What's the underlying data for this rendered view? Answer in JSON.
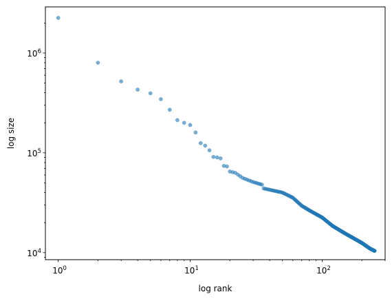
{
  "chart_data": {
    "type": "scatter",
    "title": "",
    "xlabel": "log rank",
    "ylabel": "log size",
    "x_scale": "log",
    "y_scale": "log",
    "xlim": [
      0.8,
      300
    ],
    "ylim": [
      8500,
      2900000
    ],
    "grid": false,
    "marker_color": "#1f77b4",
    "marker_alpha": 0.6,
    "x_ticks": [
      {
        "value": 1,
        "base": "10",
        "exp": "0"
      },
      {
        "value": 10,
        "base": "10",
        "exp": "1"
      },
      {
        "value": 100,
        "base": "10",
        "exp": "2"
      }
    ],
    "y_ticks": [
      {
        "value": 10000,
        "base": "10",
        "exp": "4"
      },
      {
        "value": 100000,
        "base": "10",
        "exp": "5"
      },
      {
        "value": 1000000,
        "base": "10",
        "exp": "6"
      }
    ],
    "anchor_points": [
      [
        1,
        2250000
      ],
      [
        2,
        800000
      ],
      [
        3,
        520000
      ],
      [
        4,
        430000
      ],
      [
        5,
        395000
      ],
      [
        6,
        345000
      ],
      [
        7,
        270000
      ],
      [
        8,
        213000
      ],
      [
        9,
        200000
      ],
      [
        10,
        190000
      ],
      [
        11,
        160000
      ],
      [
        12,
        125000
      ],
      [
        13,
        118000
      ],
      [
        14,
        106000
      ],
      [
        15,
        91000
      ],
      [
        16,
        90000
      ],
      [
        17,
        88000
      ],
      [
        18,
        74000
      ],
      [
        19,
        73000
      ],
      [
        20,
        65000
      ],
      [
        22,
        63000
      ],
      [
        25,
        56000
      ],
      [
        30,
        51000
      ],
      [
        35,
        48000
      ],
      [
        36,
        44000
      ],
      [
        50,
        40000
      ],
      [
        60,
        35500
      ],
      [
        70,
        29500
      ],
      [
        80,
        26500
      ],
      [
        100,
        22500
      ],
      [
        120,
        18500
      ],
      [
        150,
        15500
      ],
      [
        200,
        12500
      ],
      [
        230,
        11000
      ],
      [
        250,
        10400
      ]
    ]
  }
}
